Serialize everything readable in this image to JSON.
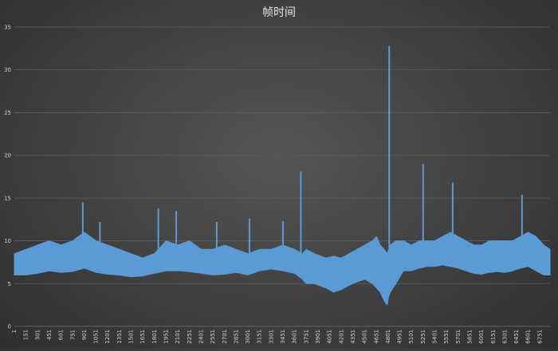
{
  "chart_data": {
    "type": "line",
    "title": "帧时间",
    "xlabel": "",
    "ylabel": "",
    "ylim": [
      0,
      35
    ],
    "y_ticks": [
      "0",
      "5",
      "10",
      "15",
      "20",
      "25",
      "30",
      "35"
    ],
    "y_tick_values": [
      0,
      5,
      10,
      15,
      20,
      25,
      30,
      35
    ],
    "x_tick_labels": [
      "1",
      "151",
      "301",
      "451",
      "601",
      "751",
      "901",
      "1051",
      "1201",
      "1351",
      "1501",
      "1651",
      "1801",
      "1951",
      "2101",
      "2251",
      "2401",
      "2551",
      "2701",
      "2851",
      "3001",
      "3151",
      "3301",
      "3451",
      "3601",
      "3751",
      "3901",
      "4051",
      "4201",
      "4351",
      "4501",
      "4651",
      "4801",
      "4951",
      "5101",
      "5251",
      "5401",
      "5551",
      "5701",
      "5851",
      "6001",
      "6151",
      "6301",
      "6451",
      "6601",
      "6751"
    ],
    "x_range": [
      1,
      6880
    ],
    "grid": true,
    "series": [
      {
        "name": "",
        "color": "#5b9bd5",
        "x": [
          1,
          150,
          300,
          450,
          600,
          750,
          900,
          1050,
          1200,
          1350,
          1500,
          1650,
          1800,
          1950,
          2100,
          2250,
          2400,
          2550,
          2700,
          2850,
          3000,
          3150,
          3300,
          3450,
          3600,
          3700,
          3750,
          3850,
          4000,
          4100,
          4200,
          4300,
          4400,
          4500,
          4600,
          4650,
          4700,
          4750,
          4790,
          4808,
          4830,
          4900,
          5000,
          5100,
          5200,
          5300,
          5400,
          5500,
          5600,
          5700,
          5800,
          5900,
          6000,
          6100,
          6200,
          6300,
          6400,
          6500,
          6600,
          6700,
          6800,
          6880
        ],
        "upper": [
          8.5,
          9,
          9.5,
          10,
          9.5,
          10,
          11,
          10,
          9.5,
          9,
          8.5,
          8,
          8.5,
          10,
          9.5,
          10,
          9,
          9,
          9.5,
          9,
          8.5,
          9,
          9,
          9.5,
          9,
          8.5,
          9,
          8.5,
          8,
          8.2,
          8,
          8.5,
          9,
          9.5,
          10,
          10.5,
          9.5,
          9,
          8.5,
          9,
          9.5,
          10,
          10,
          9.5,
          10,
          10,
          10,
          10.5,
          11,
          10.5,
          10,
          9.5,
          9.5,
          10,
          10,
          10,
          10,
          10.5,
          11,
          10.5,
          9.5,
          9
        ],
        "lower": [
          6,
          6,
          6.2,
          6.5,
          6.3,
          6.4,
          6.8,
          6.3,
          6.1,
          6,
          5.8,
          5.9,
          6.2,
          6.5,
          6.5,
          6.4,
          6.2,
          6,
          6.1,
          6.3,
          6,
          6.5,
          6.7,
          6.5,
          6.2,
          5.5,
          5,
          5,
          4.5,
          4,
          4.3,
          4.8,
          5.2,
          5.5,
          5,
          4.5,
          4,
          3,
          2.5,
          3.5,
          4,
          5,
          6.5,
          6.5,
          6.8,
          7,
          7,
          7.2,
          7,
          6.8,
          6.5,
          6.2,
          6.1,
          6.3,
          6.4,
          6.3,
          6.5,
          6.8,
          7,
          6.5,
          6,
          6
        ],
        "spikes": [
          {
            "x": 880,
            "y": 14.5
          },
          {
            "x": 1100,
            "y": 12.2
          },
          {
            "x": 1850,
            "y": 13.8
          },
          {
            "x": 2080,
            "y": 13.5
          },
          {
            "x": 2600,
            "y": 12.2
          },
          {
            "x": 3020,
            "y": 12.6
          },
          {
            "x": 3450,
            "y": 12.3
          },
          {
            "x": 3680,
            "y": 18.1
          },
          {
            "x": 4815,
            "y": 32.8
          },
          {
            "x": 5250,
            "y": 19
          },
          {
            "x": 5630,
            "y": 16.8
          },
          {
            "x": 6520,
            "y": 15.4
          }
        ]
      }
    ]
  }
}
